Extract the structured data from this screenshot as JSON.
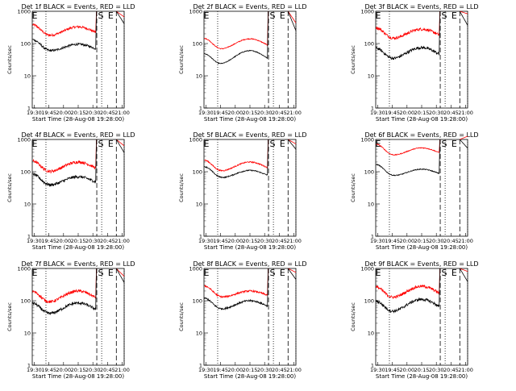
{
  "figure": {
    "panels": [
      {
        "title": "Det 1f BLACK = Events, RED = LLD",
        "black_base": 55,
        "red_base": 160,
        "black_hump": 95,
        "red_hump": 330,
        "black_end": 50,
        "red_end": 120,
        "flare_top": 1000,
        "noise": 0.08
      },
      {
        "title": "Det 2f BLACK = Events, RED = LLD",
        "black_base": 20,
        "red_base": 60,
        "black_hump": 60,
        "red_hump": 140,
        "black_end": 20,
        "red_end": 55,
        "flare_top": 1000,
        "noise": 0.03
      },
      {
        "title": "Det 3f BLACK = Events, RED = LLD",
        "black_base": 30,
        "red_base": 130,
        "black_hump": 75,
        "red_hump": 280,
        "black_end": 40,
        "red_end": 180,
        "flare_top": 1000,
        "noise": 0.1
      },
      {
        "title": "Det 4f BLACK = Events, RED = LLD",
        "black_base": 35,
        "red_base": 90,
        "black_hump": 70,
        "red_hump": 200,
        "black_end": 45,
        "red_end": 110,
        "flare_top": 1000,
        "noise": 0.1
      },
      {
        "title": "Det 5f BLACK = Events, RED = LLD",
        "black_base": 60,
        "red_base": 95,
        "black_hump": 110,
        "red_hump": 200,
        "black_end": 70,
        "red_end": 140,
        "flare_top": 1000,
        "noise": 0.04
      },
      {
        "title": "Det 6f BLACK = Events, RED = LLD",
        "black_base": 70,
        "red_base": 300,
        "black_hump": 120,
        "red_hump": 550,
        "black_end": 80,
        "red_end": 380,
        "flare_top": 1000,
        "noise": 0.03
      },
      {
        "title": "Det 7f BLACK = Events, RED = LLD",
        "black_base": 35,
        "red_base": 80,
        "black_hump": 85,
        "red_hump": 200,
        "black_end": 40,
        "red_end": 90,
        "flare_top": 1000,
        "noise": 0.1
      },
      {
        "title": "Det 8f BLACK = Events, RED = LLD",
        "black_base": 50,
        "red_base": 120,
        "black_hump": 100,
        "red_hump": 200,
        "black_end": 60,
        "red_end": 150,
        "flare_top": 1000,
        "noise": 0.06
      },
      {
        "title": "Det 9f BLACK = Events, RED = LLD",
        "black_base": 40,
        "red_base": 110,
        "black_hump": 110,
        "red_hump": 280,
        "black_end": 45,
        "red_end": 170,
        "flare_top": 1000,
        "noise": 0.1
      }
    ],
    "x_ticks": [
      "19:30",
      "19:45",
      "20:00",
      "20:15",
      "20:30",
      "20:45",
      "21:00"
    ],
    "y_ticks": [
      "1",
      "10",
      "100",
      "1000"
    ],
    "xlabel": "Start Time (28-Aug-08 19:28:00)",
    "ylabel": "Counts/sec",
    "markers": [
      "E",
      "S",
      "E"
    ]
  },
  "chart_data": {
    "type": "line",
    "layout": "3x3 grid of detector panels",
    "xlabel": "Start Time (28-Aug-08 19:28:00)",
    "ylabel": "Counts/sec",
    "y_scale": "log",
    "ylim": [
      1,
      1000
    ],
    "x_ticks": [
      "19:30",
      "19:45",
      "20:00",
      "20:15",
      "20:30",
      "20:45",
      "21:00"
    ],
    "colors": {
      "Events": "#000000",
      "LLD": "#ff0000"
    },
    "vertical_lines": [
      {
        "time": "19:42",
        "style": "dotted"
      },
      {
        "time": "20:34",
        "style": "dashed"
      },
      {
        "time": "20:39",
        "style": "dotted"
      },
      {
        "time": "20:54",
        "style": "dashed"
      },
      {
        "time": "21:02",
        "style": "dotted"
      }
    ]
  }
}
